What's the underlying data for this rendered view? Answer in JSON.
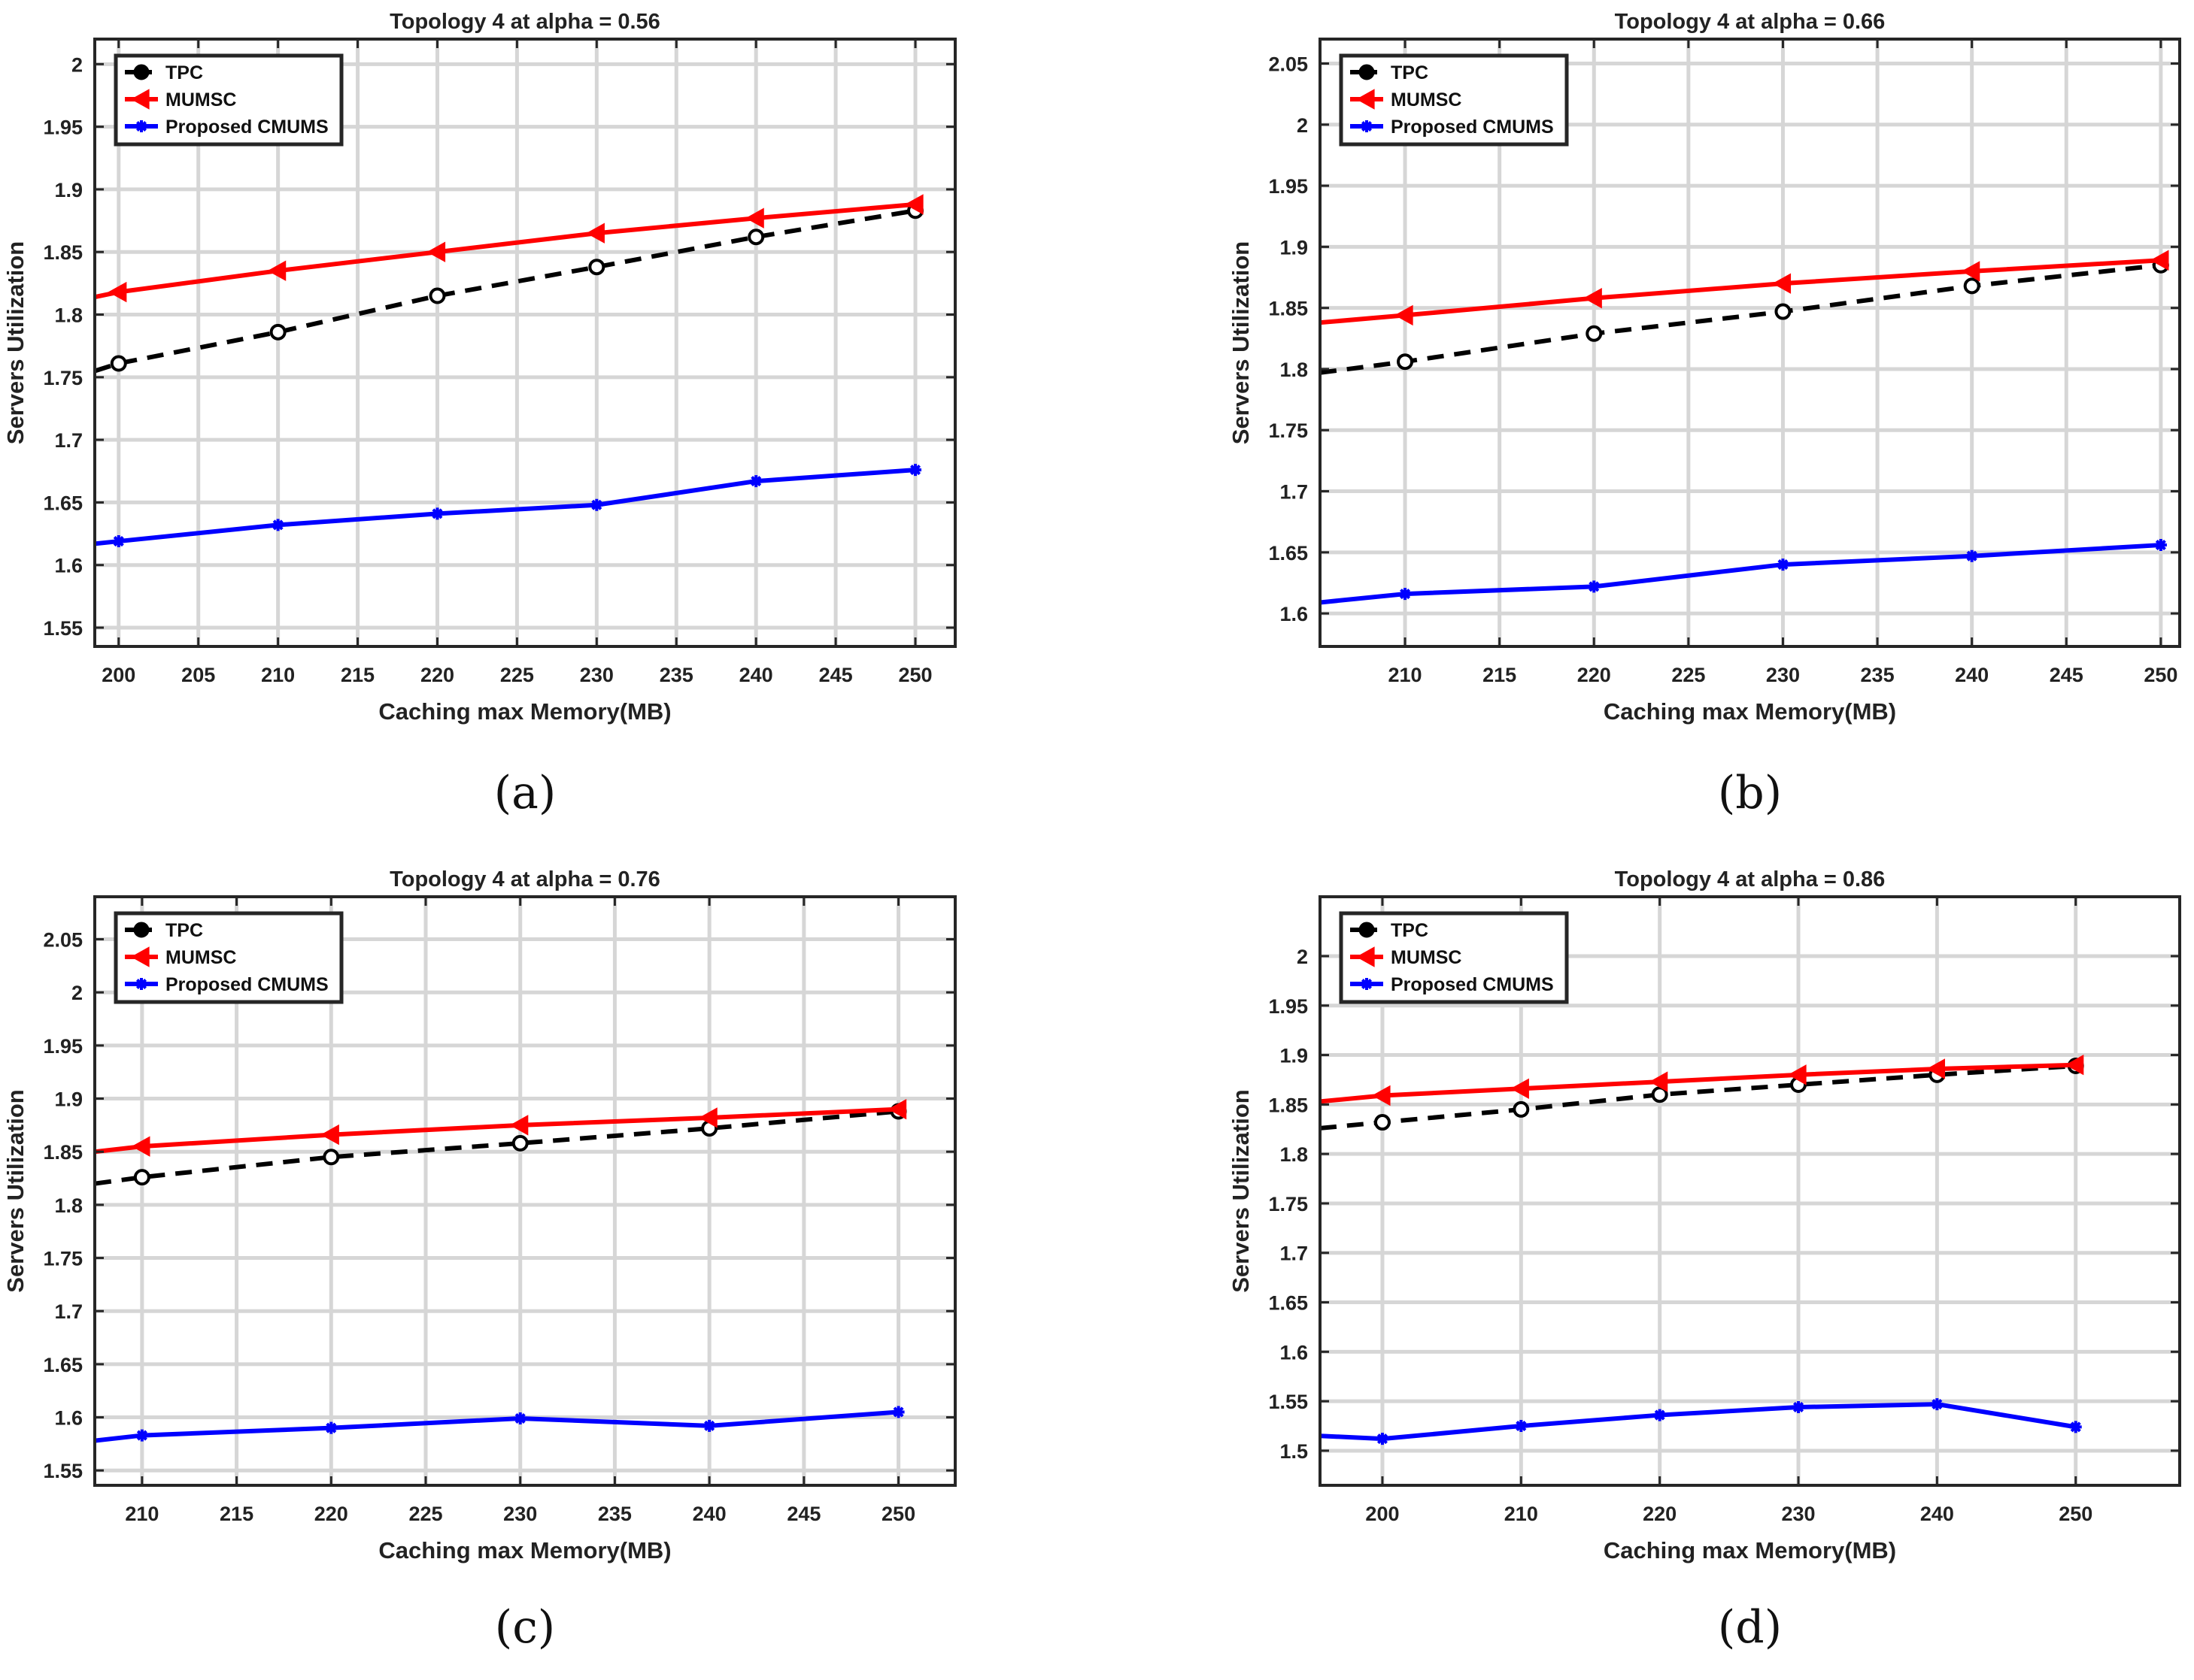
{
  "chart_data": [
    {
      "type": "line",
      "panel_label": "(a)",
      "title": "Topology 4 at alpha = 0.56",
      "xlabel": "Caching max Memory(MB)",
      "ylabel": "Servers Utilization",
      "xlim": [
        198.5,
        252.5
      ],
      "ylim": [
        1.535,
        2.02
      ],
      "xticks": [
        200,
        205,
        210,
        215,
        220,
        225,
        230,
        235,
        240,
        245,
        250
      ],
      "xtick_labels": [
        "200",
        "205",
        "210",
        "215",
        "220",
        "225",
        "230",
        "235",
        "240",
        "245",
        "250"
      ],
      "yticks": [
        1.55,
        1.6,
        1.65,
        1.7,
        1.75,
        1.8,
        1.85,
        1.9,
        1.95,
        2.0
      ],
      "ytick_labels": [
        "1.55",
        "1.6",
        "1.65",
        "1.7",
        "1.75",
        "1.8",
        "1.85",
        "1.9",
        "1.95",
        "2"
      ],
      "grid": true,
      "legend_position": "top-left",
      "series": [
        {
          "name": "TPC",
          "color": "#000000",
          "dash": true,
          "marker": "circle",
          "x": [
            198.5,
            200,
            210,
            220,
            230,
            240,
            250
          ],
          "y": [
            1.755,
            1.761,
            1.786,
            1.815,
            1.838,
            1.862,
            1.883
          ],
          "marked": [
            false,
            true,
            true,
            true,
            true,
            true,
            true
          ]
        },
        {
          "name": "MUMSC",
          "color": "#ff0000",
          "dash": false,
          "marker": "triangle-left",
          "x": [
            198.5,
            200,
            210,
            220,
            230,
            240,
            250
          ],
          "y": [
            1.814,
            1.818,
            1.835,
            1.85,
            1.865,
            1.877,
            1.888
          ],
          "marked": [
            false,
            true,
            true,
            true,
            true,
            true,
            true
          ]
        },
        {
          "name": "Proposed CMUMS",
          "color": "#0000ff",
          "dash": false,
          "marker": "star",
          "x": [
            198.5,
            200,
            210,
            220,
            230,
            240,
            250
          ],
          "y": [
            1.617,
            1.619,
            1.632,
            1.641,
            1.648,
            1.667,
            1.676
          ],
          "marked": [
            false,
            true,
            true,
            true,
            true,
            true,
            true
          ]
        }
      ]
    },
    {
      "type": "line",
      "panel_label": "(b)",
      "title": "Topology 4 at alpha = 0.66",
      "xlabel": "Caching max Memory(MB)",
      "ylabel": "Servers Utilization",
      "xlim": [
        205.5,
        251.0
      ],
      "ylim": [
        1.573,
        2.07
      ],
      "xticks": [
        210,
        215,
        220,
        225,
        230,
        235,
        240,
        245,
        250
      ],
      "xtick_labels": [
        "210",
        "215",
        "220",
        "225",
        "230",
        "235",
        "240",
        "245",
        "250"
      ],
      "yticks": [
        1.6,
        1.65,
        1.7,
        1.75,
        1.8,
        1.85,
        1.9,
        1.95,
        2.0,
        2.05
      ],
      "ytick_labels": [
        "1.6",
        "1.65",
        "1.7",
        "1.75",
        "1.8",
        "1.85",
        "1.9",
        "1.95",
        "2",
        "2.05"
      ],
      "grid": true,
      "legend_position": "top-left",
      "series": [
        {
          "name": "TPC",
          "color": "#000000",
          "dash": true,
          "marker": "circle",
          "x": [
            205.5,
            210,
            220,
            230,
            240,
            250
          ],
          "y": [
            1.797,
            1.806,
            1.829,
            1.847,
            1.868,
            1.885
          ],
          "marked": [
            false,
            true,
            true,
            true,
            true,
            true
          ]
        },
        {
          "name": "MUMSC",
          "color": "#ff0000",
          "dash": false,
          "marker": "triangle-left",
          "x": [
            205.5,
            210,
            220,
            230,
            240,
            250
          ],
          "y": [
            1.838,
            1.844,
            1.858,
            1.87,
            1.88,
            1.889
          ],
          "marked": [
            false,
            true,
            true,
            true,
            true,
            true
          ]
        },
        {
          "name": "Proposed CMUMS",
          "color": "#0000ff",
          "dash": false,
          "marker": "star",
          "x": [
            205.5,
            210,
            220,
            230,
            240,
            250
          ],
          "y": [
            1.609,
            1.616,
            1.622,
            1.64,
            1.647,
            1.656
          ],
          "marked": [
            false,
            true,
            true,
            true,
            true,
            true
          ]
        }
      ]
    },
    {
      "type": "line",
      "panel_label": "(c)",
      "title": "Topology 4 at alpha = 0.76",
      "xlabel": "Caching max Memory(MB)",
      "ylabel": "Servers Utilization",
      "xlim": [
        207.5,
        253.0
      ],
      "ylim": [
        1.536,
        2.09
      ],
      "xticks": [
        210,
        215,
        220,
        225,
        230,
        235,
        240,
        245,
        250
      ],
      "xtick_labels": [
        "210",
        "215",
        "220",
        "225",
        "230",
        "235",
        "240",
        "245",
        "250"
      ],
      "yticks": [
        1.55,
        1.6,
        1.65,
        1.7,
        1.75,
        1.8,
        1.85,
        1.9,
        1.95,
        2.0,
        2.05
      ],
      "ytick_labels": [
        "1.55",
        "1.6",
        "1.65",
        "1.7",
        "1.75",
        "1.8",
        "1.85",
        "1.9",
        "1.95",
        "2",
        "2.05"
      ],
      "grid": true,
      "legend_position": "top-left",
      "series": [
        {
          "name": "TPC",
          "color": "#000000",
          "dash": true,
          "marker": "circle",
          "x": [
            207.5,
            210,
            220,
            230,
            240,
            250
          ],
          "y": [
            1.82,
            1.826,
            1.845,
            1.858,
            1.872,
            1.888
          ],
          "marked": [
            false,
            true,
            true,
            true,
            true,
            true
          ]
        },
        {
          "name": "MUMSC",
          "color": "#ff0000",
          "dash": false,
          "marker": "triangle-left",
          "x": [
            207.5,
            210,
            220,
            230,
            240,
            250
          ],
          "y": [
            1.85,
            1.855,
            1.866,
            1.875,
            1.882,
            1.89
          ],
          "marked": [
            false,
            true,
            true,
            true,
            true,
            true
          ]
        },
        {
          "name": "Proposed CMUMS",
          "color": "#0000ff",
          "dash": false,
          "marker": "star",
          "x": [
            207.5,
            210,
            220,
            230,
            240,
            250
          ],
          "y": [
            1.578,
            1.583,
            1.59,
            1.599,
            1.592,
            1.605
          ],
          "marked": [
            false,
            true,
            true,
            true,
            true,
            true
          ]
        }
      ]
    },
    {
      "type": "line",
      "panel_label": "(d)",
      "title": "Topology 4 at alpha = 0.86",
      "xlabel": "Caching max Memory(MB)",
      "ylabel": "Servers Utilization",
      "xlim": [
        195.5,
        257.5
      ],
      "ylim": [
        1.465,
        2.06
      ],
      "xticks": [
        200,
        210,
        220,
        230,
        240,
        250
      ],
      "xtick_labels": [
        "200",
        "210",
        "220",
        "230",
        "240",
        "250"
      ],
      "yticks": [
        1.5,
        1.55,
        1.6,
        1.65,
        1.7,
        1.75,
        1.8,
        1.85,
        1.9,
        1.95,
        2.0
      ],
      "ytick_labels": [
        "1.5",
        "1.55",
        "1.6",
        "1.65",
        "1.7",
        "1.75",
        "1.8",
        "1.85",
        "1.9",
        "1.95",
        "2"
      ],
      "grid": true,
      "legend_position": "top-left",
      "series": [
        {
          "name": "TPC",
          "color": "#000000",
          "dash": true,
          "marker": "circle",
          "x": [
            195.5,
            200,
            210,
            220,
            230,
            240,
            250
          ],
          "y": [
            1.826,
            1.832,
            1.845,
            1.86,
            1.87,
            1.88,
            1.889
          ],
          "marked": [
            false,
            true,
            true,
            true,
            true,
            true,
            true
          ]
        },
        {
          "name": "MUMSC",
          "color": "#ff0000",
          "dash": false,
          "marker": "triangle-left",
          "x": [
            195.5,
            200,
            210,
            220,
            230,
            240,
            250
          ],
          "y": [
            1.853,
            1.859,
            1.866,
            1.873,
            1.88,
            1.886,
            1.89
          ],
          "marked": [
            false,
            true,
            true,
            true,
            true,
            true,
            true
          ]
        },
        {
          "name": "Proposed CMUMS",
          "color": "#0000ff",
          "dash": false,
          "marker": "star",
          "x": [
            195.5,
            200,
            210,
            220,
            230,
            240,
            250
          ],
          "y": [
            1.515,
            1.512,
            1.525,
            1.536,
            1.544,
            1.547,
            1.524
          ],
          "marked": [
            false,
            true,
            true,
            true,
            true,
            true,
            true
          ]
        }
      ]
    }
  ]
}
